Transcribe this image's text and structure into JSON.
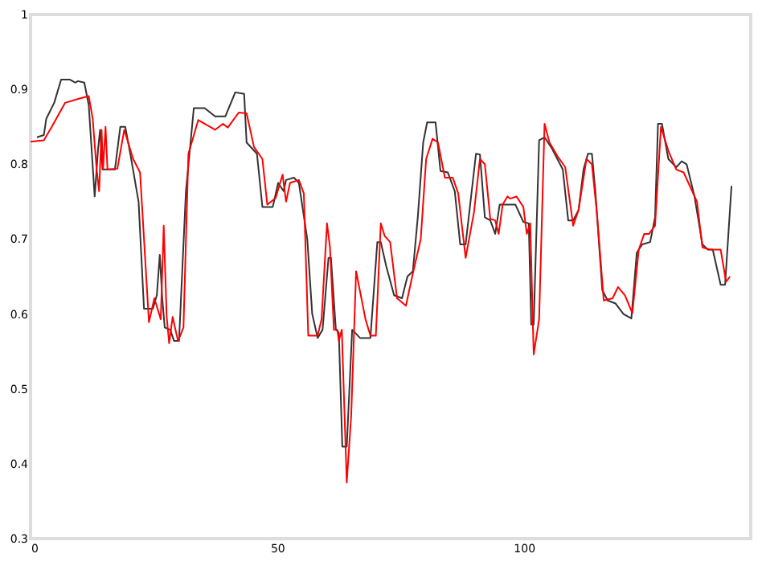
{
  "chart_data": {
    "type": "line",
    "xlim": [
      0,
      146
    ],
    "ylim": [
      0.3,
      1
    ],
    "xticks": [
      0,
      50,
      100
    ],
    "yticks": [
      0.3,
      0.4,
      0.5,
      0.6,
      0.7,
      0.8,
      0.9,
      {
        "value": 1,
        "label": "1"
      }
    ],
    "grid": false,
    "marker": "none",
    "line_style": "solid",
    "series": [
      {
        "color": "#333333",
        "x": [
          1.3,
          2.7,
          3.2,
          4.8,
          6.2,
          8,
          9.1,
          9.6,
          10.9,
          11.8,
          13,
          13.7,
          14.1,
          14.6,
          17.1,
          18.2,
          19.2,
          20.3,
          21.9,
          23,
          24.8,
          25.6,
          26.2,
          26.7,
          27.2,
          28.3,
          29.1,
          30.1,
          31.5,
          33.1,
          35.3,
          37.4,
          39.5,
          41.5,
          43.3,
          43.8,
          45.9,
          47,
          49.1,
          50.2,
          51.3,
          51.8,
          53.4,
          54.4,
          56.1,
          57.1,
          58.2,
          59.2,
          60.4,
          60.9,
          61.9,
          62.5,
          63.2,
          64.1,
          65.2,
          66.8,
          68.9,
          70.3,
          71,
          72.1,
          73.7,
          75.3,
          76.4,
          77.5,
          78.5,
          79.6,
          80.4,
          82.1,
          83.1,
          84.6,
          86,
          87.1,
          88.2,
          90.3,
          91.1,
          92.1,
          93.2,
          94.2,
          95.1,
          95.6,
          98.3,
          99.9,
          101,
          101.5,
          102,
          103.1,
          104.2,
          105.7,
          107.9,
          109,
          110,
          111.1,
          112.1,
          113,
          113.8,
          114.5,
          115.9,
          117,
          118.6,
          120.2,
          121.8,
          122.9,
          124,
          125.6,
          126.6,
          127.2,
          128,
          129.3,
          130.9,
          132,
          133,
          134.6,
          136.2,
          137.3,
          138.3,
          139.9,
          140.8,
          142.1
        ],
        "values": [
          0.836,
          0.839,
          0.861,
          0.882,
          0.913,
          0.913,
          0.909,
          0.911,
          0.909,
          0.879,
          0.757,
          0.821,
          0.846,
          0.793,
          0.793,
          0.85,
          0.85,
          0.811,
          0.75,
          0.607,
          0.607,
          0.625,
          0.679,
          0.621,
          0.582,
          0.579,
          0.564,
          0.564,
          0.764,
          0.875,
          0.875,
          0.864,
          0.864,
          0.896,
          0.894,
          0.829,
          0.814,
          0.743,
          0.743,
          0.775,
          0.764,
          0.779,
          0.782,
          0.775,
          0.7,
          0.6,
          0.568,
          0.579,
          0.675,
          0.675,
          0.579,
          0.575,
          0.423,
          0.423,
          0.579,
          0.568,
          0.568,
          0.696,
          0.696,
          0.664,
          0.625,
          0.621,
          0.65,
          0.657,
          0.729,
          0.829,
          0.856,
          0.856,
          0.791,
          0.789,
          0.764,
          0.693,
          0.693,
          0.814,
          0.813,
          0.729,
          0.725,
          0.707,
          0.746,
          0.746,
          0.746,
          0.723,
          0.721,
          0.586,
          0.586,
          0.832,
          0.836,
          0.821,
          0.793,
          0.725,
          0.725,
          0.739,
          0.793,
          0.814,
          0.814,
          0.764,
          0.632,
          0.618,
          0.614,
          0.6,
          0.594,
          0.682,
          0.693,
          0.696,
          0.729,
          0.854,
          0.854,
          0.807,
          0.796,
          0.804,
          0.8,
          0.757,
          0.693,
          0.686,
          0.686,
          0.639,
          0.639,
          0.771
        ]
      },
      {
        "color": "#ff0000",
        "x": [
          0,
          2.7,
          4.3,
          7,
          10.1,
          11.8,
          12.6,
          13.4,
          13.9,
          14.4,
          14.7,
          15.2,
          15.6,
          17.6,
          19,
          20.8,
          22.2,
          24,
          25.1,
          26.4,
          27,
          27.6,
          28.1,
          28.8,
          29.9,
          31,
          32,
          34,
          37.4,
          39,
          40,
          42.2,
          43.8,
          45.3,
          47,
          48,
          49.7,
          50.4,
          51.1,
          51.8,
          52.6,
          54.4,
          55.4,
          56.3,
          58.2,
          59,
          60.1,
          60.7,
          61.5,
          62.2,
          62.5,
          63.1,
          64.1,
          65,
          66,
          67.9,
          68.9,
          70,
          71,
          71.8,
          72.9,
          74.3,
          76.1,
          77.5,
          79.1,
          80.2,
          81.5,
          82.6,
          84,
          85.6,
          86.7,
          88.2,
          89.9,
          91.1,
          92.1,
          93.2,
          94.2,
          94.9,
          95.7,
          96.7,
          97.2,
          98.5,
          99.9,
          100.6,
          101.3,
          102,
          103.1,
          104.2,
          105.2,
          106.8,
          108.4,
          110,
          111.1,
          112.7,
          113.8,
          114.8,
          116.2,
          118,
          119.1,
          120.5,
          122,
          123.3,
          124.4,
          125.4,
          126.6,
          127.8,
          129.3,
          130.9,
          132.4,
          135.1,
          136.2,
          137.8,
          139.9,
          141,
          141.8
        ],
        "values": [
          0.83,
          0.832,
          0.85,
          0.882,
          0.888,
          0.891,
          0.861,
          0.793,
          0.764,
          0.846,
          0.793,
          0.85,
          0.793,
          0.794,
          0.846,
          0.807,
          0.789,
          0.589,
          0.621,
          0.593,
          0.718,
          0.596,
          0.561,
          0.596,
          0.564,
          0.582,
          0.814,
          0.859,
          0.846,
          0.854,
          0.849,
          0.869,
          0.868,
          0.823,
          0.807,
          0.746,
          0.755,
          0.771,
          0.786,
          0.75,
          0.775,
          0.779,
          0.761,
          0.571,
          0.571,
          0.593,
          0.721,
          0.689,
          0.579,
          0.579,
          0.564,
          0.579,
          0.375,
          0.464,
          0.657,
          0.593,
          0.571,
          0.571,
          0.721,
          0.704,
          0.696,
          0.621,
          0.611,
          0.654,
          0.7,
          0.807,
          0.834,
          0.829,
          0.782,
          0.782,
          0.761,
          0.675,
          0.736,
          0.807,
          0.8,
          0.727,
          0.725,
          0.707,
          0.746,
          0.757,
          0.754,
          0.757,
          0.743,
          0.707,
          0.721,
          0.546,
          0.593,
          0.854,
          0.829,
          0.811,
          0.796,
          0.718,
          0.739,
          0.807,
          0.8,
          0.736,
          0.618,
          0.621,
          0.636,
          0.625,
          0.601,
          0.686,
          0.707,
          0.707,
          0.718,
          0.85,
          0.818,
          0.793,
          0.789,
          0.75,
          0.689,
          0.686,
          0.686,
          0.643,
          0.65
        ]
      }
    ]
  }
}
